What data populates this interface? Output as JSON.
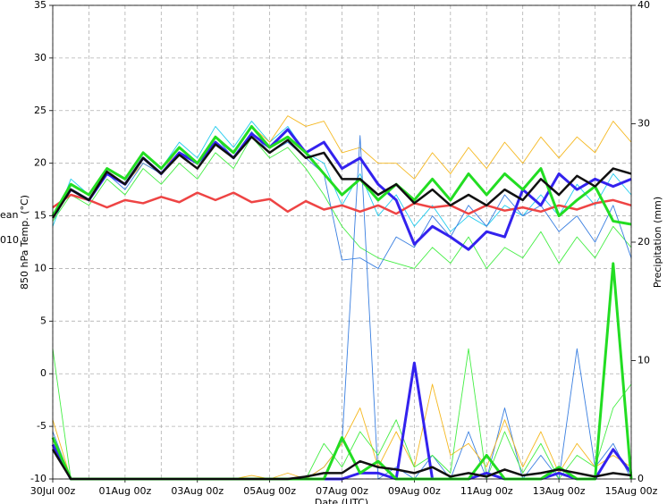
{
  "chart_data": {
    "type": "line",
    "texts": [
      "ean",
      "010"
    ],
    "xlabel": "Date (UTC)",
    "ylabel": "850 hPa Temp. (°C)",
    "y2label": "Precipitation (mm)",
    "x": [
      0,
      0.5,
      1,
      1.5,
      2,
      2.5,
      3,
      3.5,
      4,
      4.5,
      5,
      5.5,
      6,
      6.5,
      7,
      7.5,
      8,
      8.5,
      9,
      9.5,
      10,
      10.5,
      11,
      11.5,
      12,
      12.5,
      13,
      13.5,
      14,
      14.5,
      15,
      15.5,
      16
    ],
    "xlim": [
      0,
      16
    ],
    "xticks": [
      {
        "value": 0,
        "label": "30Jul 00z"
      },
      {
        "value": 2,
        "label": "01Aug 00z"
      },
      {
        "value": 4,
        "label": "03Aug 00z"
      },
      {
        "value": 6,
        "label": "05Aug 00z"
      },
      {
        "value": 8,
        "label": "07Aug 00z"
      },
      {
        "value": 10,
        "label": "09Aug 00z"
      },
      {
        "value": 12,
        "label": "11Aug 00z"
      },
      {
        "value": 14,
        "label": "13Aug 00z"
      },
      {
        "value": 16,
        "label": "15Aug 00z"
      }
    ],
    "xminor_ticks": [
      1,
      3,
      5,
      7,
      9,
      11,
      13,
      15
    ],
    "ylim": [
      -10,
      35
    ],
    "yticks": [
      -10,
      -5,
      0,
      5,
      10,
      15,
      20,
      25,
      30,
      35
    ],
    "y2lim": [
      0,
      40
    ],
    "y2ticks": [
      0,
      10,
      20,
      30,
      40
    ],
    "grid": true,
    "series": [
      {
        "color": "#22ccee",
        "width": 0.9,
        "values": [
          14,
          18.5,
          17,
          19.5,
          18.5,
          21,
          19.5,
          22,
          20.5,
          23.5,
          21.5,
          24,
          22,
          23.5,
          21,
          20,
          16,
          19,
          15,
          17,
          14,
          16,
          13.5,
          15,
          14,
          16,
          15,
          17,
          15,
          18,
          16,
          19,
          17
        ]
      },
      {
        "color": "#f5b820",
        "width": 0.9,
        "values": [
          15,
          18,
          17,
          19,
          18,
          20,
          19,
          21.5,
          20,
          22.5,
          21,
          23.5,
          22,
          24.5,
          23.5,
          24,
          21,
          21.5,
          20,
          20,
          18.5,
          21,
          19,
          21.5,
          19.5,
          22,
          20,
          22.5,
          20.5,
          22.5,
          21,
          24,
          22
        ]
      },
      {
        "color": "#44ee44",
        "width": 0.9,
        "values": [
          14.5,
          17,
          16,
          18.5,
          17,
          19.5,
          18,
          20,
          18.5,
          21,
          19.5,
          22.5,
          20.5,
          21.5,
          19.5,
          17,
          14,
          12,
          11,
          10.5,
          10,
          12,
          10.5,
          13,
          10,
          12,
          11,
          13.5,
          10.5,
          13,
          11,
          14,
          12
        ]
      },
      {
        "color": "#3a7fe0",
        "width": 0.9,
        "values": [
          15,
          17.5,
          16.5,
          19,
          17.5,
          20,
          19,
          21,
          19.5,
          22.5,
          20.5,
          23,
          21,
          22,
          20.5,
          19,
          10.8,
          11,
          10,
          13,
          12,
          15,
          13,
          16,
          14,
          17,
          15,
          16,
          13.5,
          15,
          12.5,
          16,
          11
        ]
      },
      {
        "color": "#3a7fe0",
        "width": 0.9,
        "axis": "y2",
        "values": [
          4,
          0,
          0,
          0,
          0,
          0,
          0,
          0,
          0,
          0,
          0,
          0,
          0,
          0,
          0,
          1,
          3,
          29,
          0,
          1,
          0,
          2,
          0,
          4,
          0,
          6,
          0,
          2,
          0,
          11,
          1,
          3,
          0
        ]
      },
      {
        "color": "#f5b820",
        "width": 0.9,
        "axis": "y2",
        "values": [
          5,
          0,
          0,
          0,
          0,
          0,
          0,
          0,
          0,
          0,
          0,
          0.3,
          0,
          0.5,
          0,
          1,
          3,
          6,
          1,
          4,
          1,
          8,
          2,
          3,
          1,
          5,
          1,
          4,
          0.5,
          3,
          1,
          2,
          1
        ]
      },
      {
        "color": "#44ee44",
        "width": 0.9,
        "axis": "y2",
        "values": [
          11,
          0,
          0,
          0,
          0,
          0,
          0,
          0,
          0,
          0,
          0,
          0,
          0,
          0,
          0,
          3,
          1,
          4,
          2,
          5,
          1,
          2,
          0.5,
          11,
          0,
          4,
          0.5,
          3,
          0,
          2,
          1,
          6,
          8
        ]
      },
      {
        "color": "#ee4444",
        "width": 2.5,
        "values": [
          15.8,
          17,
          16.5,
          15.8,
          16.5,
          16.2,
          16.8,
          16.3,
          17.2,
          16.5,
          17.2,
          16.3,
          16.6,
          15.4,
          16.4,
          15.6,
          16,
          15.4,
          16,
          15.2,
          16.2,
          15.8,
          16,
          15.2,
          16,
          15.5,
          15.8,
          15.4,
          16,
          15.6,
          16.2,
          16.5,
          16
        ]
      },
      {
        "color": "#3322ee",
        "width": 3,
        "values": [
          15,
          17.5,
          16.5,
          19,
          18,
          20.5,
          19,
          21,
          20,
          22,
          20.5,
          22.8,
          21.5,
          23.2,
          21,
          22,
          19.5,
          20.5,
          18,
          16.5,
          12.3,
          14,
          13,
          11.8,
          13.5,
          13,
          17.5,
          16,
          19,
          17.5,
          18.5,
          17.8,
          18.5
        ]
      },
      {
        "color": "#22dd22",
        "width": 3,
        "values": [
          15,
          18,
          17,
          19.5,
          18.5,
          21,
          19.5,
          21.5,
          20,
          22.5,
          21,
          23.5,
          21.5,
          22.5,
          21,
          19,
          17,
          18.5,
          16.5,
          18,
          16.5,
          18.5,
          16.5,
          19,
          17,
          19,
          17.5,
          19.5,
          15,
          16.5,
          17.8,
          14.5,
          14.2
        ]
      },
      {
        "color": "#111111",
        "width": 2.5,
        "values": [
          14.8,
          17.5,
          16.5,
          19.2,
          18,
          20.5,
          19,
          20.8,
          19.5,
          21.8,
          20.5,
          22.5,
          21,
          22.2,
          20.5,
          21,
          18.5,
          18.5,
          17,
          18,
          16.2,
          17.5,
          16,
          17,
          16,
          17.5,
          16.5,
          18.5,
          17,
          18.8,
          17.8,
          19.5,
          19
        ]
      },
      {
        "color": "#3322ee",
        "width": 3,
        "axis": "y2",
        "values": [
          2.9,
          0,
          0,
          0,
          0,
          0,
          0,
          0,
          0,
          0,
          0,
          0,
          0,
          0,
          0,
          0,
          0,
          0.5,
          0.5,
          0,
          9.8,
          0,
          0,
          0,
          0.5,
          0,
          0,
          0,
          0.5,
          0,
          0,
          2.5,
          0.5
        ]
      },
      {
        "color": "#22dd22",
        "width": 3,
        "axis": "y2",
        "values": [
          3.5,
          0,
          0,
          0,
          0,
          0,
          0,
          0,
          0,
          0,
          0,
          0,
          0,
          0,
          0,
          0,
          3.5,
          0.5,
          1.5,
          0,
          0,
          0,
          0,
          0,
          2,
          0,
          0,
          0,
          1,
          0,
          0,
          18.2,
          0
        ]
      },
      {
        "color": "#111111",
        "width": 2.5,
        "axis": "y2",
        "values": [
          2.5,
          0,
          0,
          0,
          0,
          0,
          0,
          0,
          0,
          0,
          0,
          0,
          0,
          0,
          0.2,
          0.5,
          0.5,
          1.5,
          1,
          0.8,
          0.5,
          1,
          0.2,
          0.5,
          0.2,
          0.8,
          0.3,
          0.5,
          0.8,
          0.5,
          0.2,
          0.5,
          0.3
        ]
      }
    ]
  }
}
